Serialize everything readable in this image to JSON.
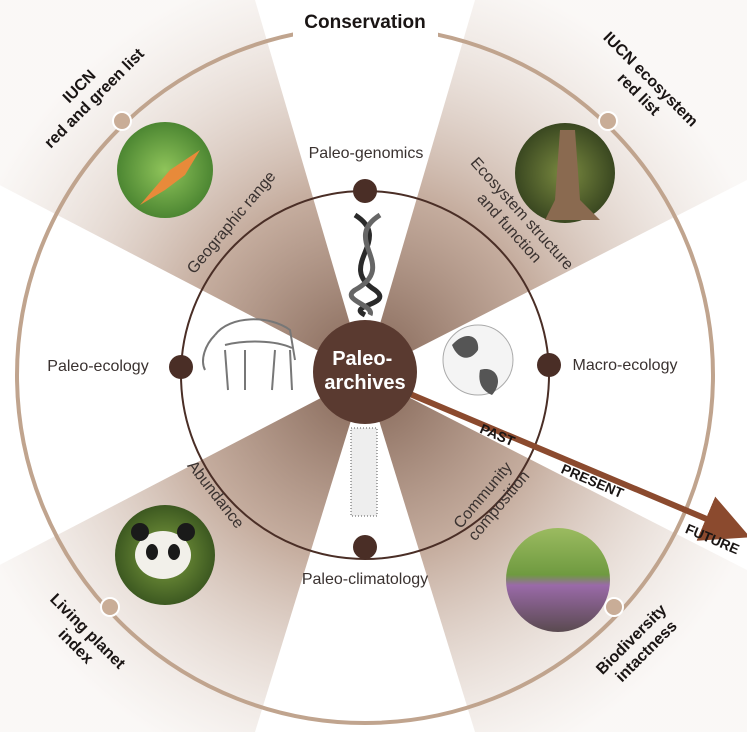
{
  "title": "Conservation",
  "center": [
    "Paleo-",
    "archives"
  ],
  "timeline": [
    "PAST",
    "PRESENT",
    "FUTURE"
  ],
  "disciplines": {
    "top": "Paleo-genomics",
    "left": "Paleo-ecology",
    "right": "Macro-ecology",
    "bottom": "Paleo-climatology"
  },
  "attributes": {
    "upper_left": "Geographic range",
    "upper_right": [
      "Ecosystem structure",
      "and function"
    ],
    "lower_left": "Abundance",
    "lower_right": [
      "Community",
      "composition"
    ]
  },
  "indicators": {
    "upper_left": [
      "IUCN",
      "red and green list"
    ],
    "upper_right": [
      "IUCN ecosystem",
      "red list"
    ],
    "lower_left": [
      "Living planet",
      "index"
    ],
    "lower_right": [
      "Biodiversity",
      "intactness"
    ]
  }
}
